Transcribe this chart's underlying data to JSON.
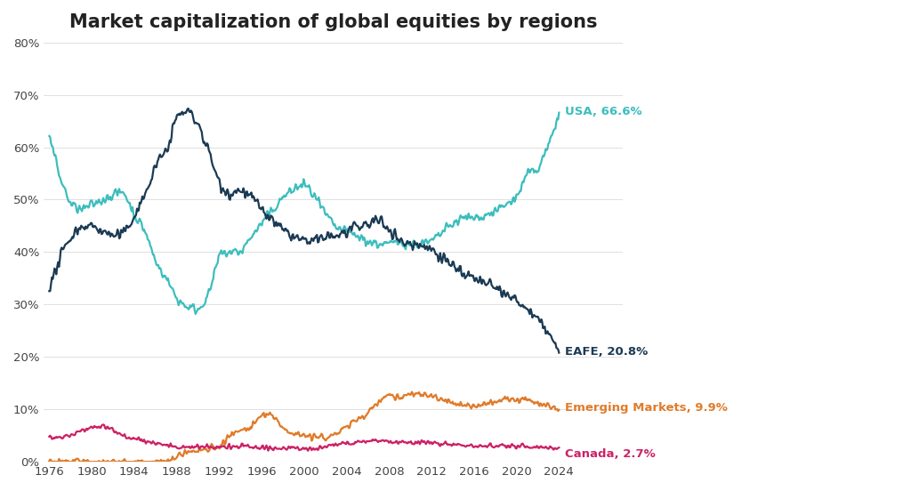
{
  "title": "Market capitalization of global equities by regions",
  "title_fontsize": 15,
  "background_color": "#ffffff",
  "xlim_start": 1975.5,
  "xlim_end": 2024.5,
  "ylim": [
    0.0,
    0.8
  ],
  "yticks": [
    0.0,
    0.1,
    0.2,
    0.3,
    0.4,
    0.5,
    0.6,
    0.7,
    0.8
  ],
  "xticks": [
    1976,
    1980,
    1984,
    1988,
    1992,
    1996,
    2000,
    2004,
    2008,
    2012,
    2016,
    2020,
    2024
  ],
  "colors": {
    "USA": "#3dbdbd",
    "EAFE": "#1b3a54",
    "Emerging": "#e07b2a",
    "Canada": "#cc2266"
  },
  "labels": {
    "USA": "USA, 66.6%",
    "EAFE": "EAFE, 20.8%",
    "Emerging": "Emerging Markets, 9.9%",
    "Canada": "Canada, 2.7%"
  },
  "label_offsets": {
    "USA": 0.002,
    "EAFE": 0.002,
    "Emerging": 0.004,
    "Canada": -0.012
  },
  "linewidth": 1.6,
  "noise_seed": 42
}
